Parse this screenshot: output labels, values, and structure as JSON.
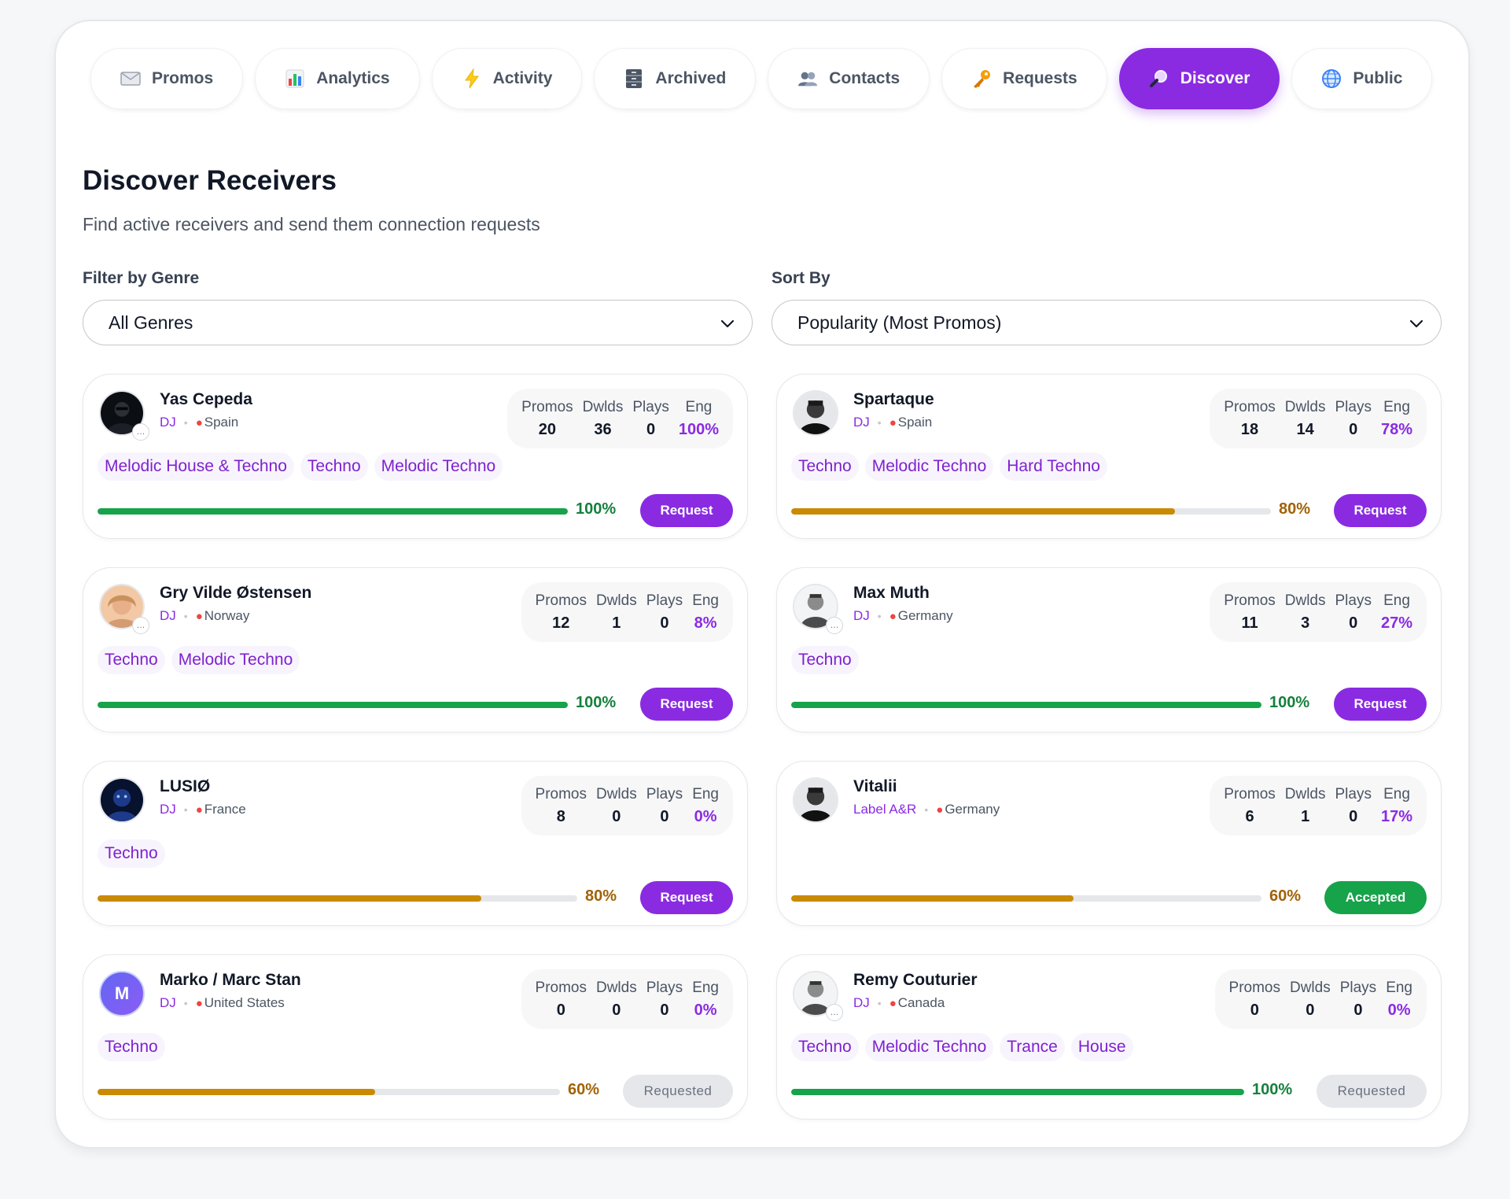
{
  "tabs": [
    {
      "label": "Promos",
      "icon": "envelope-icon",
      "active": false
    },
    {
      "label": "Analytics",
      "icon": "bar-chart-icon",
      "active": false
    },
    {
      "label": "Activity",
      "icon": "lightning-icon",
      "active": false
    },
    {
      "label": "Archived",
      "icon": "cabinet-icon",
      "active": false
    },
    {
      "label": "Contacts",
      "icon": "people-icon",
      "active": false
    },
    {
      "label": "Requests",
      "icon": "key-icon",
      "active": false
    },
    {
      "label": "Discover",
      "icon": "magnifier-icon",
      "active": true
    },
    {
      "label": "Public",
      "icon": "globe-icon",
      "active": false
    }
  ],
  "page": {
    "title": "Discover Receivers",
    "subtitle": "Find active receivers and send them connection requests"
  },
  "filters": {
    "genre": {
      "label": "Filter by Genre",
      "value": "All Genres"
    },
    "sort": {
      "label": "Sort By",
      "value": "Popularity (Most Promos)"
    }
  },
  "stat_labels": {
    "promos": "Promos",
    "dwlds": "Dwlds",
    "plays": "Plays",
    "eng": "Eng"
  },
  "colors": {
    "accent": "#8a2be2",
    "green": "#16a34a",
    "amber": "#ca8a04",
    "pct_green": "#15803d",
    "pct_amber": "#a16207"
  },
  "receivers": [
    {
      "name": "Yas Cepeda",
      "role": "DJ",
      "location": "Spain",
      "promos": "20",
      "dwlds": "36",
      "plays": "0",
      "eng": "100%",
      "tags": [
        "Melodic House & Techno",
        "Techno",
        "Melodic Techno"
      ],
      "score_label": "100%",
      "score": 1.0,
      "button": "Request",
      "button_state": "request",
      "avatar": "dark-photo"
    },
    {
      "name": "Spartaque",
      "role": "DJ",
      "location": "Spain",
      "promos": "18",
      "dwlds": "14",
      "plays": "0",
      "eng": "78%",
      "tags": [
        "Techno",
        "Melodic Techno",
        "Hard Techno"
      ],
      "score_label": "80%",
      "score": 0.8,
      "button": "Request",
      "button_state": "request",
      "avatar": "bw-photo"
    },
    {
      "name": "Gry Vilde Østensen",
      "role": "DJ",
      "location": "Norway",
      "promos": "12",
      "dwlds": "1",
      "plays": "0",
      "eng": "8%",
      "tags": [
        "Techno",
        "Melodic Techno"
      ],
      "score_label": "100%",
      "score": 1.0,
      "button": "Request",
      "button_state": "request",
      "avatar": "warm-photo"
    },
    {
      "name": "Max Muth",
      "role": "DJ",
      "location": "Germany",
      "promos": "11",
      "dwlds": "3",
      "plays": "0",
      "eng": "27%",
      "tags": [
        "Techno"
      ],
      "score_label": "100%",
      "score": 1.0,
      "button": "Request",
      "button_state": "request",
      "avatar": "light-photo"
    },
    {
      "name": "LUSIØ",
      "role": "DJ",
      "location": "France",
      "promos": "8",
      "dwlds": "0",
      "plays": "0",
      "eng": "0%",
      "tags": [
        "Techno"
      ],
      "score_label": "80%",
      "score": 0.8,
      "button": "Request",
      "button_state": "request",
      "avatar": "blue-photo"
    },
    {
      "name": "Vitalii",
      "role": "Label A&R",
      "location": "Germany",
      "promos": "6",
      "dwlds": "1",
      "plays": "0",
      "eng": "17%",
      "tags": [],
      "score_label": "60%",
      "score": 0.6,
      "button": "Accepted",
      "button_state": "accepted",
      "avatar": "bw-photo"
    },
    {
      "name": "Marko / Marc Stan",
      "role": "DJ",
      "location": "United States",
      "promos": "0",
      "dwlds": "0",
      "plays": "0",
      "eng": "0%",
      "tags": [
        "Techno"
      ],
      "score_label": "60%",
      "score": 0.6,
      "button": "Requested",
      "button_state": "requested",
      "avatar": "letter",
      "avatar_letter": "M"
    },
    {
      "name": "Remy Couturier",
      "role": "DJ",
      "location": "Canada",
      "promos": "0",
      "dwlds": "0",
      "plays": "0",
      "eng": "0%",
      "tags": [
        "Techno",
        "Melodic Techno",
        "Trance",
        "House"
      ],
      "score_label": "100%",
      "score": 1.0,
      "button": "Requested",
      "button_state": "requested",
      "avatar": "light-photo"
    }
  ]
}
